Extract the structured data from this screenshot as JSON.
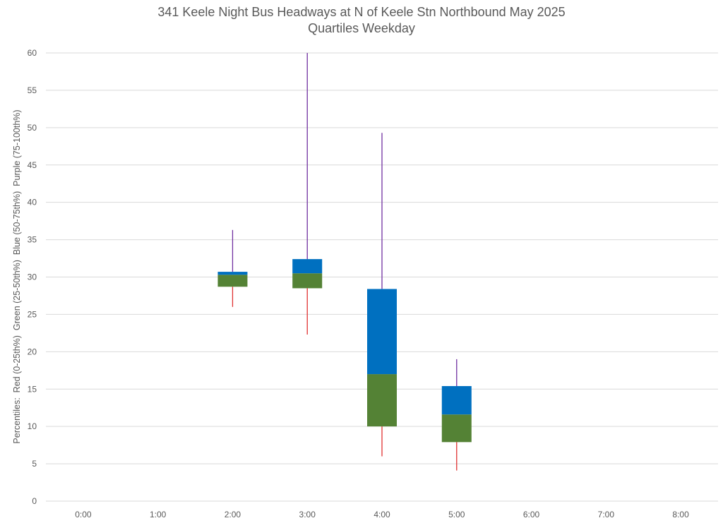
{
  "chart_data": {
    "type": "box",
    "title": "341 Keele Night Bus Headways at N of Keele Stn Northbound May 2025",
    "subtitle": "Quartiles Weekday",
    "ylabel": "Percentiles:  Red (0-25th%)  Green (25-50th%)  Blue (50-75th%)  Purple (75-100th%)",
    "xlabel": "",
    "ylim": [
      0,
      60
    ],
    "yticks": [
      "0",
      "5",
      "10",
      "15",
      "20",
      "25",
      "30",
      "35",
      "40",
      "45",
      "50",
      "55",
      "60"
    ],
    "categories": [
      "0:00",
      "1:00",
      "2:00",
      "3:00",
      "4:00",
      "5:00",
      "6:00",
      "7:00",
      "8:00"
    ],
    "series": [
      {
        "category": "2:00",
        "min": 26.0,
        "q1": 28.7,
        "median": 30.3,
        "q3": 30.7,
        "max": 36.3
      },
      {
        "category": "3:00",
        "min": 22.3,
        "q1": 28.5,
        "median": 30.5,
        "q3": 32.4,
        "max": 60.0
      },
      {
        "category": "4:00",
        "min": 6.0,
        "q1": 10.0,
        "median": 17.0,
        "q3": 28.4,
        "max": 49.3
      },
      {
        "category": "5:00",
        "min": 4.1,
        "q1": 7.9,
        "median": 11.6,
        "q3": 15.4,
        "max": 19.0
      }
    ],
    "colors": {
      "lower_whisker": "#e03131",
      "lower_box": "#548235",
      "upper_box": "#0070c0",
      "upper_whisker": "#7030a0",
      "gridline": "#d9d9d9",
      "axis_text": "#595959"
    },
    "grid": true,
    "legend": "none"
  }
}
